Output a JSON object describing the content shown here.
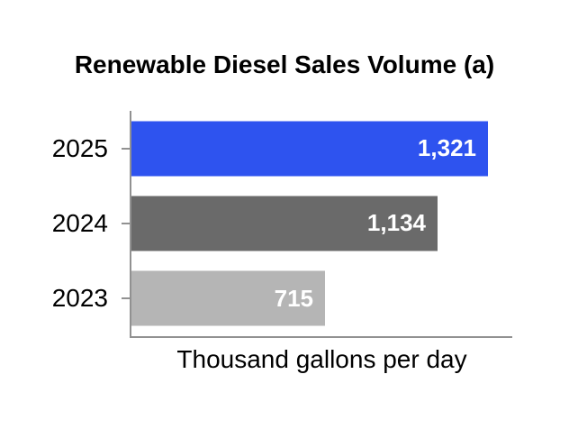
{
  "chart_data": {
    "type": "bar",
    "orientation": "horizontal",
    "title": "Renewable Diesel Sales Volume (a)",
    "xlabel": "Thousand gallons per day",
    "categories": [
      "2025",
      "2024",
      "2023"
    ],
    "values": [
      1321,
      1134,
      715
    ],
    "value_labels": [
      "1,321",
      "1,134",
      "715"
    ],
    "bar_colors": [
      "#2e53ef",
      "#6a6a6a",
      "#b5b5b5"
    ],
    "xlim": [
      0,
      1410
    ],
    "grid": false,
    "legend": false,
    "axis_color": "#919191",
    "value_label_color": "#ffffff",
    "text_color": "#000000",
    "background": "#ffffff"
  }
}
